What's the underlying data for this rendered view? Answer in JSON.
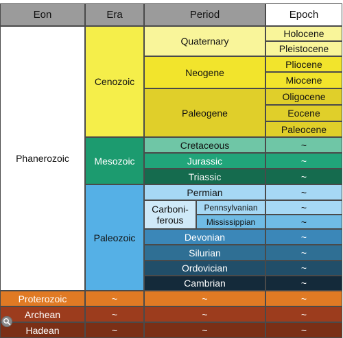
{
  "headers": {
    "eon": "Eon",
    "era": "Era",
    "period": "Period",
    "epoch": "Epoch"
  },
  "eons": {
    "phanerozoic": "Phanerozoic",
    "proterozoic": "Proterozoic",
    "archean": "Archean",
    "hadean": "Hadean"
  },
  "eras": {
    "cenozoic": "Cenozoic",
    "mesozoic": "Mesozoic",
    "paleozoic": "Paleozoic"
  },
  "periods": {
    "quaternary": "Quaternary",
    "neogene": "Neogene",
    "paleogene": "Paleogene",
    "cretaceous": "Cretaceous",
    "jurassic": "Jurassic",
    "triassic": "Triassic",
    "permian": "Permian",
    "carboniferous_line1": "Carboni-",
    "carboniferous_line2": "ferous",
    "pennsylvanian": "Pennsylvanian",
    "mississippian": "Mississippian",
    "devonian": "Devonian",
    "silurian": "Silurian",
    "ordovician": "Ordovician",
    "cambrian": "Cambrian"
  },
  "epochs": {
    "holocene": "Holocene",
    "pleistocene": "Pleistocene",
    "pliocene": "Pliocene",
    "miocene": "Miocene",
    "oligocene": "Oligocene",
    "eocene": "Eocene",
    "paleocene": "Paleocene"
  },
  "placeholder": "~",
  "colors": {
    "header_bg": "#9b9b9b",
    "epoch_header_bg": "#ffffff",
    "phanerozoic_bg": "#ffffff",
    "cenozoic": "#f5ee4a",
    "quaternary": "#f9f59a",
    "neogene": "#f2e42c",
    "paleogene": "#e0cf2a",
    "mesozoic": "#1c9b6f",
    "cretaceous": "#6fc6a6",
    "jurassic": "#21a57a",
    "triassic": "#156b4e",
    "paleozoic": "#55b0e6",
    "permian": "#a6d8f4",
    "carboniferous": "#cfe9f8",
    "pennsylvanian": "#a6d8f4",
    "mississippian": "#6fbbe4",
    "devonian": "#3b87b8",
    "silurian": "#2f6f94",
    "ordovician": "#214e69",
    "cambrian": "#142a3a",
    "proterozoic": "#e07a24",
    "archean": "#9c3c1d",
    "hadean": "#7a2f16"
  },
  "icons": {
    "lens": "lens-search-icon"
  }
}
